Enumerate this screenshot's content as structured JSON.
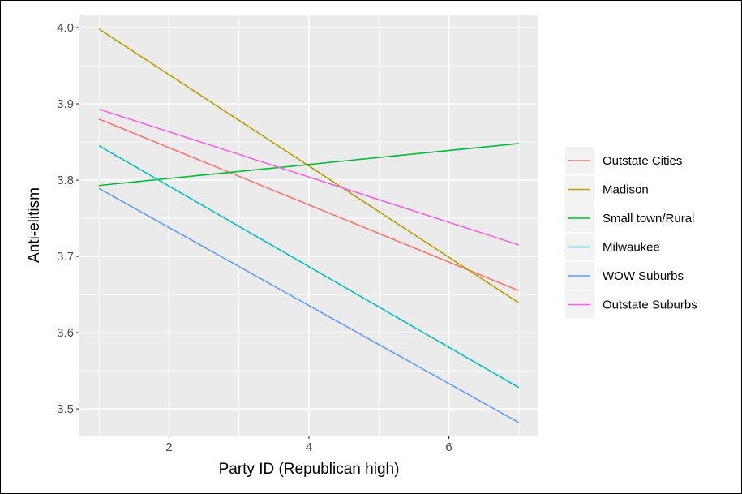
{
  "chart_data": {
    "type": "line",
    "xlabel": "Party ID (Republican high)",
    "ylabel": "Anti-elitism",
    "xlim": [
      0.72,
      7.28
    ],
    "ylim": [
      3.465,
      4.017
    ],
    "x_ticks": [
      2,
      4,
      6
    ],
    "x_tick_labels": [
      "2",
      "4",
      "6"
    ],
    "x_minor_ticks": [
      1,
      3,
      5,
      7
    ],
    "y_ticks": [
      3.5,
      3.6,
      3.7,
      3.8,
      3.9,
      4.0
    ],
    "y_tick_labels": [
      "3.5",
      "3.6",
      "3.7",
      "3.8",
      "3.9",
      "4.0"
    ],
    "y_minor_ticks": [
      3.55,
      3.65,
      3.75,
      3.85,
      3.95
    ],
    "grid": true,
    "panel_background": "#ebebeb",
    "legend_position": "right",
    "series": [
      {
        "name": "Outstate Cities",
        "color": "#f8766d",
        "x": [
          1,
          7
        ],
        "y": [
          3.88,
          3.655
        ]
      },
      {
        "name": "Madison",
        "color": "#b79f00",
        "x": [
          1,
          7
        ],
        "y": [
          3.998,
          3.639
        ]
      },
      {
        "name": "Small town/Rural",
        "color": "#00ba38",
        "x": [
          1,
          7
        ],
        "y": [
          3.793,
          3.848
        ]
      },
      {
        "name": "Milwaukee",
        "color": "#00bfc4",
        "x": [
          1,
          7
        ],
        "y": [
          3.845,
          3.528
        ]
      },
      {
        "name": "WOW Suburbs",
        "color": "#619cff",
        "x": [
          1,
          7
        ],
        "y": [
          3.789,
          3.482
        ]
      },
      {
        "name": "Outstate Suburbs",
        "color": "#f564e3",
        "x": [
          1,
          7
        ],
        "y": [
          3.893,
          3.715
        ]
      }
    ]
  }
}
